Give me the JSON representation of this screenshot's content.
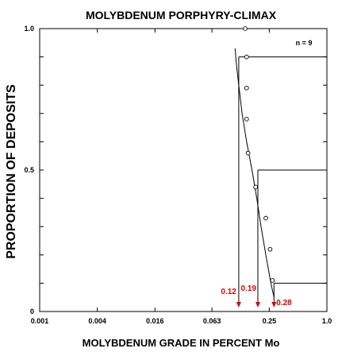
{
  "chart_data": {
    "type": "scatter",
    "title": "MOLYBDENUM PORPHYRY-CLIMAX",
    "xlabel": "MOLYBDENUM GRADE IN PERCENT Mo",
    "ylabel": "PROPORTION OF DEPOSITS",
    "xscale": "log",
    "xlim": [
      0.001,
      1.0
    ],
    "ylim": [
      0,
      1.0
    ],
    "x_ticks": [
      {
        "value": 0.001,
        "label": "0.001"
      },
      {
        "value": 0.004,
        "label": "0.004"
      },
      {
        "value": 0.016,
        "label": "0.016"
      },
      {
        "value": 0.063,
        "label": "0.063"
      },
      {
        "value": 0.25,
        "label": "0.25"
      },
      {
        "value": 1.0,
        "label": "1.0"
      }
    ],
    "y_ticks": [
      {
        "value": 0,
        "label": "0"
      },
      {
        "value": 0.5,
        "label": "0.5"
      },
      {
        "value": 1.0,
        "label": "1.0"
      }
    ],
    "annotation": "n = 9",
    "points": [
      {
        "x": 0.14,
        "y": 1.0
      },
      {
        "x": 0.145,
        "y": 0.9
      },
      {
        "x": 0.145,
        "y": 0.79
      },
      {
        "x": 0.145,
        "y": 0.68
      },
      {
        "x": 0.15,
        "y": 0.56
      },
      {
        "x": 0.18,
        "y": 0.44
      },
      {
        "x": 0.23,
        "y": 0.33
      },
      {
        "x": 0.255,
        "y": 0.22
      },
      {
        "x": 0.27,
        "y": 0.11
      }
    ],
    "fitted_curve": [
      {
        "x": 0.11,
        "y": 0.93
      },
      {
        "x": 0.113,
        "y": 0.88
      },
      {
        "x": 0.12,
        "y": 0.8
      },
      {
        "x": 0.13,
        "y": 0.7
      },
      {
        "x": 0.145,
        "y": 0.6
      },
      {
        "x": 0.165,
        "y": 0.5
      },
      {
        "x": 0.185,
        "y": 0.4
      },
      {
        "x": 0.205,
        "y": 0.3
      },
      {
        "x": 0.23,
        "y": 0.2
      },
      {
        "x": 0.26,
        "y": 0.1
      },
      {
        "x": 0.28,
        "y": 0.05
      }
    ],
    "percentile_markers": [
      {
        "label": "0.12",
        "x": 0.12,
        "y": 0.9
      },
      {
        "label": "0.19",
        "x": 0.19,
        "y": 0.5
      },
      {
        "label": "0.28",
        "x": 0.28,
        "y": 0.1
      }
    ],
    "marker_color": "#dd0000"
  }
}
